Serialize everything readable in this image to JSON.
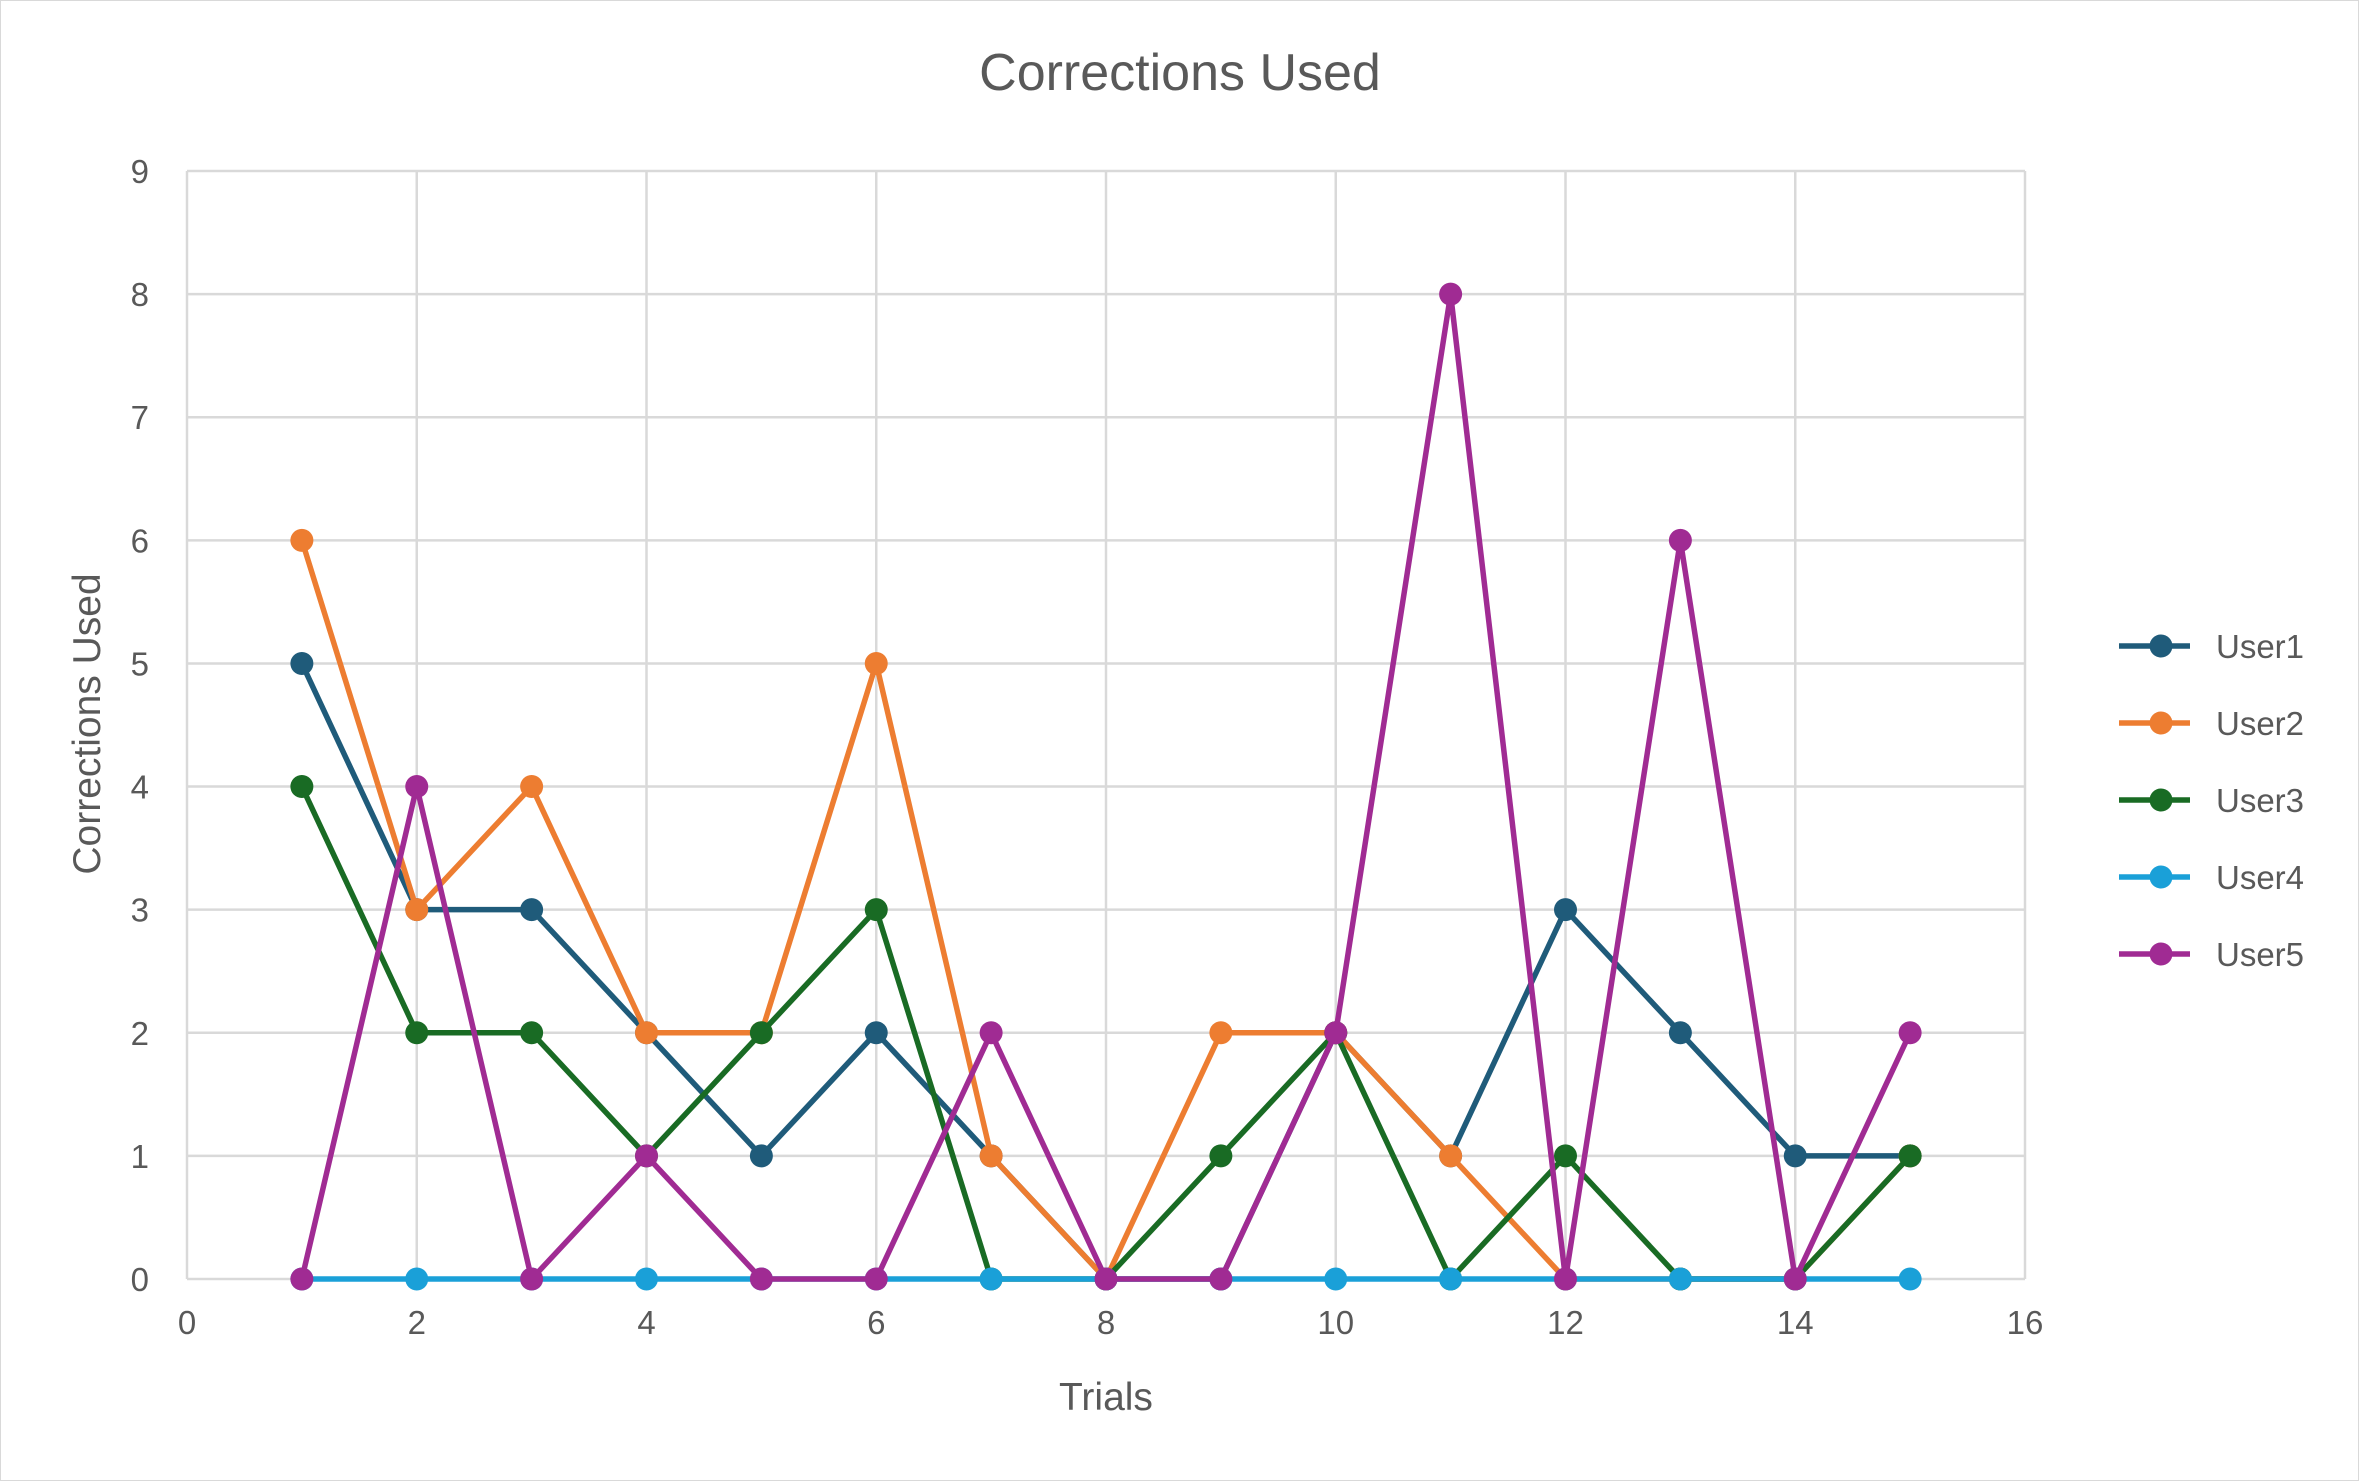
{
  "chart_data": {
    "type": "scatter",
    "title": "Corrections Used",
    "xlabel": "Trials",
    "ylabel": "Corrections Used",
    "xlim": [
      0,
      16
    ],
    "ylim": [
      0,
      9
    ],
    "x_ticks": [
      0,
      2,
      4,
      6,
      8,
      10,
      12,
      14,
      16
    ],
    "y_ticks": [
      0,
      1,
      2,
      3,
      4,
      5,
      6,
      7,
      8,
      9
    ],
    "grid": true,
    "legend_position": "right",
    "x": [
      1,
      2,
      3,
      4,
      5,
      6,
      7,
      8,
      9,
      10,
      11,
      12,
      13,
      14,
      15
    ],
    "series": [
      {
        "name": "User1",
        "color": "#1f5b7a",
        "values": [
          5,
          3,
          3,
          2,
          1,
          2,
          1,
          0,
          0,
          2,
          1,
          3,
          2,
          1,
          1
        ]
      },
      {
        "name": "User2",
        "color": "#ed7d31",
        "values": [
          6,
          3,
          4,
          2,
          2,
          5,
          1,
          0,
          2,
          2,
          1,
          0,
          0,
          0,
          1
        ]
      },
      {
        "name": "User3",
        "color": "#196b24",
        "values": [
          4,
          2,
          2,
          1,
          2,
          3,
          0,
          0,
          1,
          2,
          0,
          1,
          0,
          0,
          1
        ]
      },
      {
        "name": "User4",
        "color": "#1aa0d8",
        "values": [
          0,
          0,
          0,
          0,
          0,
          0,
          0,
          0,
          0,
          0,
          0,
          0,
          0,
          0,
          0
        ]
      },
      {
        "name": "User5",
        "color": "#a02b93",
        "values": [
          0,
          4,
          0,
          1,
          0,
          0,
          2,
          0,
          0,
          2,
          8,
          0,
          6,
          0,
          2
        ]
      }
    ]
  }
}
